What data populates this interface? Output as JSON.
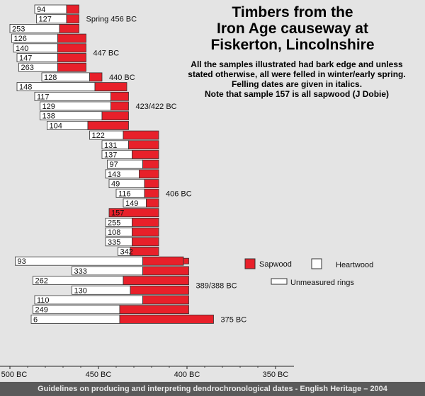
{
  "title": "Timbers from the\nIron Age causeway at\nFiskerton, Lincolnshire",
  "note": "All the samples illustrated had bark edge and unless\nstated otherwise, all were felled in winter/early spring.\nFelling dates are given in italics.\nNote that sample 157 is all sapwood (J Dobie)",
  "footer": "Guidelines on producing and interpreting dendrochronological dates - English Heritage – 2004",
  "colors": {
    "sapwood": "#e8202a",
    "heartwood": "#ffffff",
    "background": "#e4e4e4",
    "outline": "#333333"
  },
  "chart_data": {
    "type": "bar",
    "orientation": "horizontal",
    "xaxis": {
      "reversed": true,
      "range": [
        500,
        350
      ],
      "ticks": [
        500,
        450,
        400,
        350
      ],
      "tick_labels": [
        "500 BC",
        "450 BC",
        "400 BC",
        "350 BC"
      ]
    },
    "legend": [
      {
        "label": "Sapwood",
        "kind": "sapwood"
      },
      {
        "label": "Heartwood",
        "kind": "heartwood"
      },
      {
        "label": "Unmeasured rings",
        "kind": "unmeasured"
      }
    ],
    "groups": [
      {
        "label": "Spring 456 BC",
        "samples": [
          {
            "id": "94",
            "start": 486,
            "heart_end": 468,
            "sap_end": 461
          },
          {
            "id": "127",
            "start": 485,
            "heart_end": 468,
            "sap_end": 461
          },
          {
            "id": "253",
            "start": 500,
            "heart_end": 472,
            "sap_end": 461
          }
        ]
      },
      {
        "label": "447 BC",
        "samples": [
          {
            "id": "126",
            "start": 499,
            "heart_end": 473,
            "sap_end": 457
          },
          {
            "id": "140",
            "start": 498,
            "heart_end": 473,
            "sap_end": 457
          },
          {
            "id": "147",
            "start": 496,
            "heart_end": 473,
            "sap_end": 457
          },
          {
            "id": "263",
            "start": 495,
            "heart_end": 473,
            "sap_end": 457
          }
        ]
      },
      {
        "label": "440 BC",
        "samples": [
          {
            "id": "128",
            "start": 482,
            "heart_end": 455,
            "sap_end": 448
          }
        ]
      },
      {
        "label": "423/422 BC",
        "samples": [
          {
            "id": "148",
            "start": 496,
            "heart_end": 452,
            "sap_end": 434
          },
          {
            "id": "117",
            "start": 486,
            "heart_end": 443,
            "sap_end": 433
          },
          {
            "id": "129",
            "start": 483,
            "heart_end": 443,
            "sap_end": 433
          },
          {
            "id": "138",
            "start": 483,
            "heart_end": 448,
            "sap_end": 433
          },
          {
            "id": "104",
            "start": 479,
            "heart_end": 456,
            "sap_end": 433
          }
        ]
      },
      {
        "label": "406 BC",
        "samples": [
          {
            "id": "122",
            "start": 455,
            "heart_end": 436,
            "sap_end": 416
          },
          {
            "id": "131",
            "start": 448,
            "heart_end": 433,
            "sap_end": 416
          },
          {
            "id": "137",
            "start": 448,
            "heart_end": 431,
            "sap_end": 416
          },
          {
            "id": "97",
            "start": 445,
            "heart_end": 425,
            "sap_end": 416
          },
          {
            "id": "143",
            "start": 446,
            "heart_end": 427,
            "sap_end": 416
          },
          {
            "id": "49",
            "start": 444,
            "heart_end": 424,
            "sap_end": 416
          },
          {
            "id": "116",
            "start": 440,
            "heart_end": 424,
            "sap_end": 416
          },
          {
            "id": "149",
            "start": 436,
            "heart_end": 423,
            "sap_end": 416
          },
          {
            "id": "157",
            "start": 444,
            "heart_end": 444,
            "sap_end": 416
          },
          {
            "id": "255",
            "start": 446,
            "heart_end": 431,
            "sap_end": 416
          },
          {
            "id": "108",
            "start": 446,
            "heart_end": 431,
            "sap_end": 416
          },
          {
            "id": "335",
            "start": 446,
            "heart_end": 431,
            "sap_end": 416
          },
          {
            "id": "342",
            "start": 439,
            "heart_end": 432,
            "sap_end": 416
          }
        ]
      },
      {
        "label": "389/388 BC",
        "samples": [
          {
            "id": "93",
            "start": 497,
            "heart_end": 425,
            "sap_end": 402,
            "unmeasured_end": 399
          },
          {
            "id": "333",
            "start": 465,
            "heart_end": 425,
            "sap_end": 399
          },
          {
            "id": "262",
            "start": 487,
            "heart_end": 436,
            "sap_end": 399
          },
          {
            "id": "130",
            "start": 465,
            "heart_end": 432,
            "sap_end": 399
          },
          {
            "id": "110",
            "start": 486,
            "heart_end": 425,
            "sap_end": 399
          },
          {
            "id": "249",
            "start": 487,
            "heart_end": 438,
            "sap_end": 399
          }
        ]
      },
      {
        "label": "375 BC",
        "samples": [
          {
            "id": "6",
            "start": 488,
            "heart_end": 438,
            "sap_end": 385
          }
        ]
      }
    ]
  }
}
